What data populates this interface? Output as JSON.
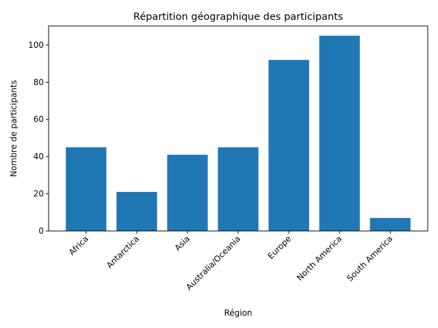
{
  "chart_data": {
    "type": "bar",
    "title": "Répartition géographique des participants",
    "x_label": "Région",
    "y_label": "Nombre de participants",
    "categories": [
      "Africa",
      "Antarctica",
      "Asia",
      "Australia/Oceania",
      "Europe",
      "North America",
      "South America"
    ],
    "values": [
      45,
      21,
      41,
      45,
      92,
      105,
      7
    ],
    "color": "#1f77b4",
    "ylim": [
      0,
      110.25
    ],
    "yticks": [
      0,
      20,
      40,
      60,
      80,
      100
    ],
    "grid": false
  }
}
